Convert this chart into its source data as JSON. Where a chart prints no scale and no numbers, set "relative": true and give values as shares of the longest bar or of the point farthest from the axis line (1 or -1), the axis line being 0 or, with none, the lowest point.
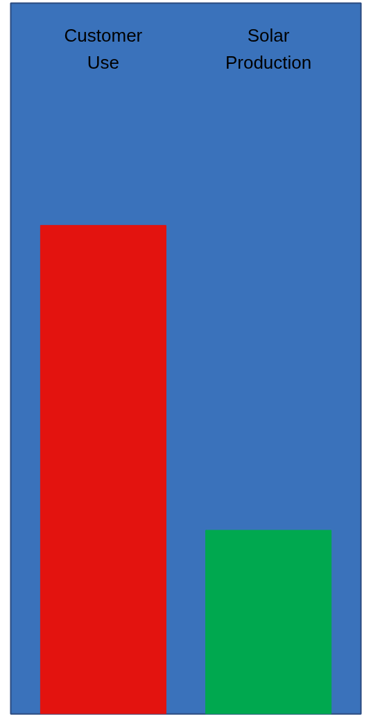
{
  "chart_data": {
    "type": "bar",
    "relative": true,
    "categories": [
      "Customer Use",
      "Solar Production"
    ],
    "values": [
      1,
      0.376
    ],
    "colors": [
      "#e3130f",
      "#00a84f"
    ]
  }
}
